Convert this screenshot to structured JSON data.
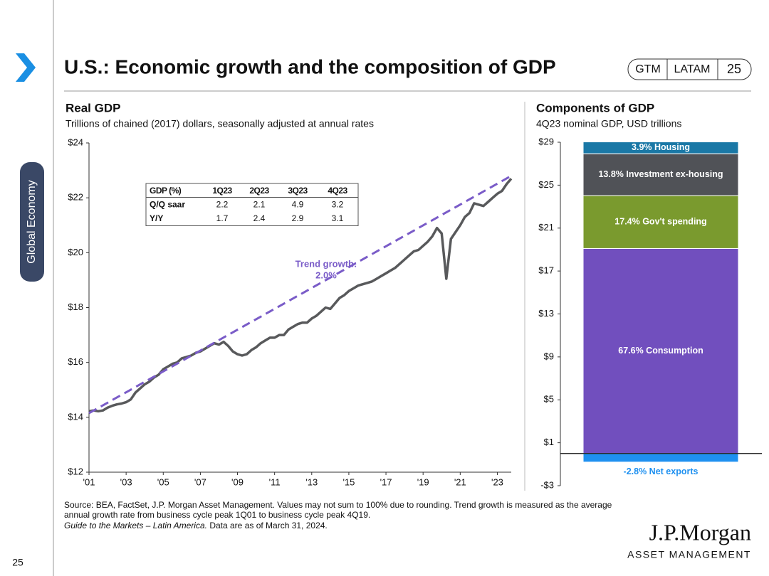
{
  "header": {
    "title": "U.S.: Economic growth and the composition of GDP",
    "badge": [
      "GTM",
      "LATAM",
      "25"
    ],
    "section": "Global Economy",
    "page": "25"
  },
  "footnote": {
    "lines": [
      "Source: BEA, FactSet, J.P. Morgan Asset Management. Values may not sum to 100% due to rounding. Trend growth is measured as the average",
      "annual growth rate from business cycle peak 1Q01 to business cycle peak 4Q19."
    ],
    "guide": "Guide to the Markets – Latin America.",
    "date": "Data are as of March 31, 2024."
  },
  "logo": {
    "name": "J.P.Morgan",
    "tagline": "ASSET MANAGEMENT"
  },
  "chart_data": [
    {
      "type": "line",
      "title": "Real GDP",
      "subtitle": "Trillions of chained (2017) dollars, seasonally adjusted at annual rates",
      "x": [
        2001,
        2001.25,
        2001.5,
        2001.75,
        2002,
        2002.25,
        2002.5,
        2002.75,
        2003,
        2003.25,
        2003.5,
        2003.75,
        2004,
        2004.25,
        2004.5,
        2004.75,
        2005,
        2005.25,
        2005.5,
        2005.75,
        2006,
        2006.25,
        2006.5,
        2006.75,
        2007,
        2007.25,
        2007.5,
        2007.75,
        2008,
        2008.25,
        2008.5,
        2008.75,
        2009,
        2009.25,
        2009.5,
        2009.75,
        2010,
        2010.25,
        2010.5,
        2010.75,
        2011,
        2011.25,
        2011.5,
        2011.75,
        2012,
        2012.25,
        2012.5,
        2012.75,
        2013,
        2013.25,
        2013.5,
        2013.75,
        2014,
        2014.25,
        2014.5,
        2014.75,
        2015,
        2015.25,
        2015.5,
        2015.75,
        2016,
        2016.25,
        2016.5,
        2016.75,
        2017,
        2017.25,
        2017.5,
        2017.75,
        2018,
        2018.25,
        2018.5,
        2018.75,
        2019,
        2019.25,
        2019.5,
        2019.75,
        2020,
        2020.25,
        2020.5,
        2020.75,
        2021,
        2021.25,
        2021.5,
        2021.75,
        2022,
        2022.25,
        2022.5,
        2022.75,
        2023,
        2023.25,
        2023.5,
        2023.75
      ],
      "series": [
        {
          "color": "#58595b",
          "values": [
            14.22,
            14.25,
            14.22,
            14.25,
            14.35,
            14.42,
            14.47,
            14.5,
            14.55,
            14.65,
            14.9,
            15.05,
            15.2,
            15.3,
            15.45,
            15.55,
            15.75,
            15.85,
            15.95,
            16.0,
            16.15,
            16.2,
            16.25,
            16.35,
            16.4,
            16.5,
            16.6,
            16.7,
            16.65,
            16.75,
            16.6,
            16.4,
            16.3,
            16.25,
            16.3,
            16.45,
            16.55,
            16.7,
            16.8,
            16.9,
            16.9,
            17.0,
            17.0,
            17.2,
            17.3,
            17.4,
            17.45,
            17.45,
            17.6,
            17.7,
            17.85,
            18.0,
            17.95,
            18.15,
            18.35,
            18.45,
            18.6,
            18.7,
            18.8,
            18.85,
            18.9,
            18.95,
            19.05,
            19.15,
            19.25,
            19.35,
            19.45,
            19.6,
            19.75,
            19.9,
            20.05,
            20.1,
            20.25,
            20.4,
            20.6,
            20.9,
            20.7,
            19.05,
            20.5,
            20.75,
            21.0,
            21.3,
            21.45,
            21.8,
            21.75,
            21.7,
            21.85,
            22.0,
            22.15,
            22.25,
            22.5,
            22.7
          ]
        },
        {
          "color": "#7a5cc8",
          "dashed": true,
          "x": [
            2001,
            2023.75
          ],
          "values": [
            14.15,
            22.8
          ]
        }
      ],
      "annotation": [
        "Trend growth:",
        "2.0%"
      ],
      "table": {
        "header": [
          "GDP (%)",
          "1Q23",
          "2Q23",
          "3Q23",
          "4Q23"
        ],
        "rows": [
          [
            "Q/Q saar",
            "2.2",
            "2.1",
            "4.9",
            "3.2"
          ],
          [
            "Y/Y",
            "1.7",
            "2.4",
            "2.9",
            "3.1"
          ]
        ]
      },
      "xlim": [
        2001,
        2023.75
      ],
      "xticks": [
        {
          "value": 2001,
          "label": "'01"
        },
        {
          "value": 2003,
          "label": "'03"
        },
        {
          "value": 2005,
          "label": "'05"
        },
        {
          "value": 2007,
          "label": "'07"
        },
        {
          "value": 2009,
          "label": "'09"
        },
        {
          "value": 2011,
          "label": "'11"
        },
        {
          "value": 2013,
          "label": "'13"
        },
        {
          "value": 2015,
          "label": "'15"
        },
        {
          "value": 2017,
          "label": "'17"
        },
        {
          "value": 2019,
          "label": "'19"
        },
        {
          "value": 2021,
          "label": "'21"
        },
        {
          "value": 2023,
          "label": "'23"
        }
      ],
      "ylim": [
        12,
        24
      ],
      "yticks": [
        {
          "value": 12,
          "label": "$12"
        },
        {
          "value": 14,
          "label": "$14"
        },
        {
          "value": 16,
          "label": "$16"
        },
        {
          "value": 18,
          "label": "$18"
        },
        {
          "value": 20,
          "label": "$20"
        },
        {
          "value": 22,
          "label": "$22"
        },
        {
          "value": 24,
          "label": "$24"
        }
      ],
      "grid": false
    },
    {
      "type": "stacked_bar",
      "title": "Components of GDP",
      "subtitle": "4Q23 nominal GDP, USD trillions",
      "series": [
        {
          "name": "67.6% Consumption",
          "color": "#714fbe",
          "label_color": "#ffffff",
          "values": [
            19.1
          ]
        },
        {
          "name": "17.4% Gov't  spending",
          "color": "#7a9a2e",
          "label_color": "#ffffff",
          "values": [
            4.93
          ]
        },
        {
          "name": "13.8% Investment ex-housing",
          "color": "#505257",
          "label_color": "#ffffff",
          "values": [
            3.9
          ]
        },
        {
          "name": "3.9% Housing",
          "color": "#1a78a6",
          "label_color": "#ffffff",
          "values": [
            1.1
          ]
        },
        {
          "name": "-2.8% Net exports",
          "color": "#1e90f0",
          "label_color": "#1e90f0",
          "values": [
            -0.8
          ]
        }
      ],
      "ylim": [
        -3,
        29
      ],
      "yticks": [
        {
          "value": -3,
          "label": "-$3"
        },
        {
          "value": 1,
          "label": "$1"
        },
        {
          "value": 5,
          "label": "$5"
        },
        {
          "value": 9,
          "label": "$9"
        },
        {
          "value": 13,
          "label": "$13"
        },
        {
          "value": 17,
          "label": "$17"
        },
        {
          "value": 21,
          "label": "$21"
        },
        {
          "value": 25,
          "label": "$25"
        },
        {
          "value": 29,
          "label": "$29"
        }
      ],
      "grid": false
    }
  ]
}
